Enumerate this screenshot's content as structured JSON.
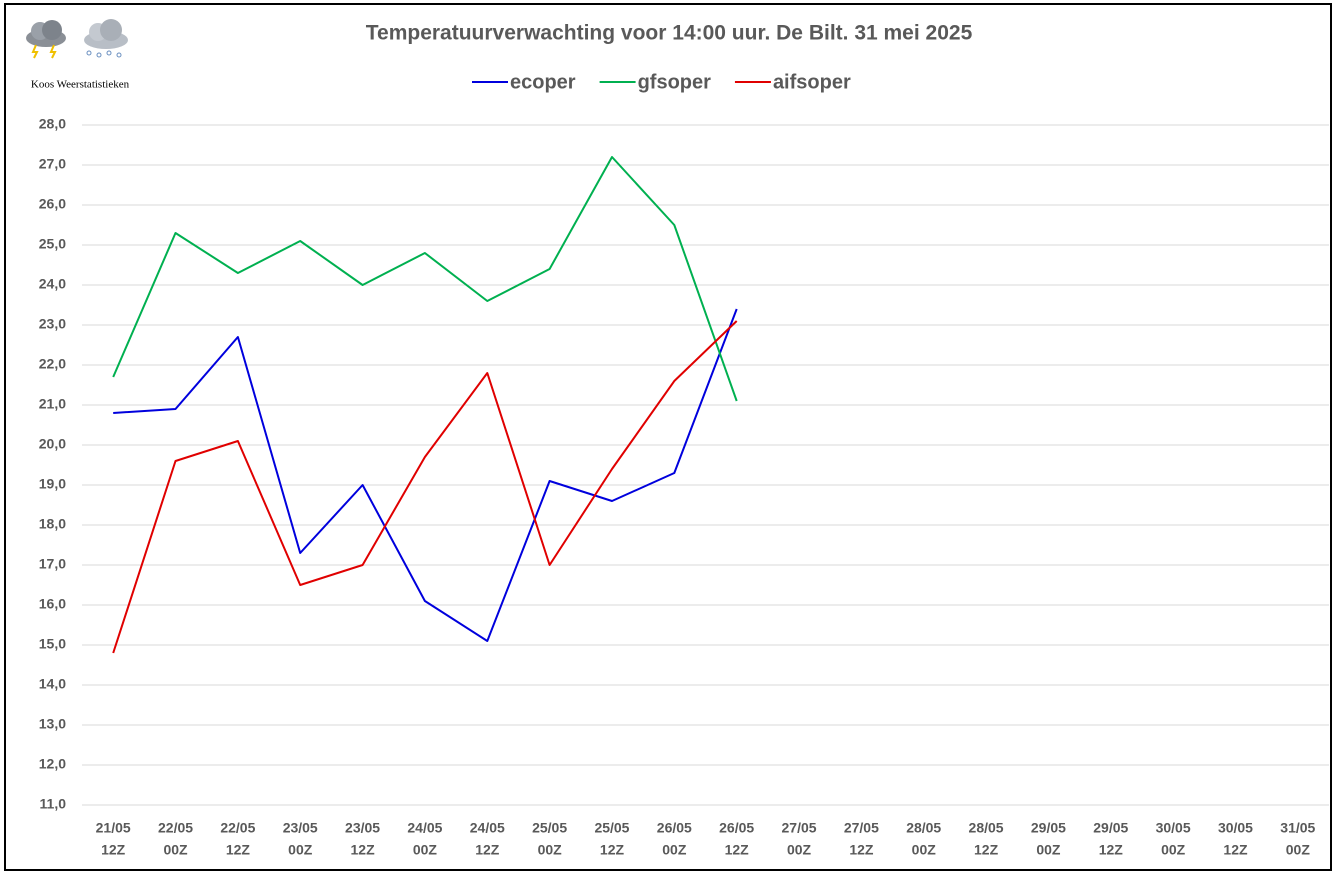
{
  "chart_data": {
    "type": "line",
    "title": "Temperatuurverwachting voor 14:00 uur. De Bilt. 31 mei 2025",
    "source": "Koos Weerstatistieken",
    "categories": [
      [
        "21/05",
        "12Z"
      ],
      [
        "22/05",
        "00Z"
      ],
      [
        "22/05",
        "12Z"
      ],
      [
        "23/05",
        "00Z"
      ],
      [
        "23/05",
        "12Z"
      ],
      [
        "24/05",
        "00Z"
      ],
      [
        "24/05",
        "12Z"
      ],
      [
        "25/05",
        "00Z"
      ],
      [
        "25/05",
        "12Z"
      ],
      [
        "26/05",
        "00Z"
      ],
      [
        "26/05",
        "12Z"
      ],
      [
        "27/05",
        "00Z"
      ],
      [
        "27/05",
        "12Z"
      ],
      [
        "28/05",
        "00Z"
      ],
      [
        "28/05",
        "12Z"
      ],
      [
        "29/05",
        "00Z"
      ],
      [
        "29/05",
        "12Z"
      ],
      [
        "30/05",
        "00Z"
      ],
      [
        "30/05",
        "12Z"
      ],
      [
        "31/05",
        "00Z"
      ]
    ],
    "series": [
      {
        "name": "ecoper",
        "color": "#0000dd",
        "values": [
          20.8,
          20.9,
          22.7,
          17.3,
          19.0,
          16.1,
          15.1,
          19.1,
          18.6,
          19.3,
          23.4,
          null,
          null,
          null,
          null,
          null,
          null,
          null,
          null,
          null
        ]
      },
      {
        "name": "gfsoper",
        "color": "#00b050",
        "values": [
          21.7,
          25.3,
          24.3,
          25.1,
          24.0,
          24.8,
          23.6,
          24.4,
          27.2,
          25.5,
          21.1,
          null,
          null,
          null,
          null,
          null,
          null,
          null,
          null,
          null
        ]
      },
      {
        "name": "aifsoper",
        "color": "#e00000",
        "values": [
          14.8,
          19.6,
          20.1,
          16.5,
          17.0,
          19.7,
          21.8,
          17.0,
          19.4,
          21.6,
          23.1,
          null,
          null,
          null,
          null,
          null,
          null,
          null,
          null,
          null
        ]
      }
    ],
    "ylim": [
      11,
      28
    ],
    "yticks": [
      {
        "value": 11,
        "label": "11,0"
      },
      {
        "value": 12,
        "label": "12,0"
      },
      {
        "value": 13,
        "label": "13,0"
      },
      {
        "value": 14,
        "label": "14,0"
      },
      {
        "value": 15,
        "label": "15,0"
      },
      {
        "value": 16,
        "label": "16,0"
      },
      {
        "value": 17,
        "label": "17,0"
      },
      {
        "value": 18,
        "label": "18,0"
      },
      {
        "value": 19,
        "label": "19,0"
      },
      {
        "value": 20,
        "label": "20,0"
      },
      {
        "value": 21,
        "label": "21,0"
      },
      {
        "value": 22,
        "label": "22,0"
      },
      {
        "value": 23,
        "label": "23,0"
      },
      {
        "value": 24,
        "label": "24,0"
      },
      {
        "value": 25,
        "label": "25,0"
      },
      {
        "value": 26,
        "label": "26,0"
      },
      {
        "value": 27,
        "label": "27,0"
      },
      {
        "value": 28,
        "label": "28,0"
      }
    ],
    "grid": true,
    "legend": "top"
  }
}
